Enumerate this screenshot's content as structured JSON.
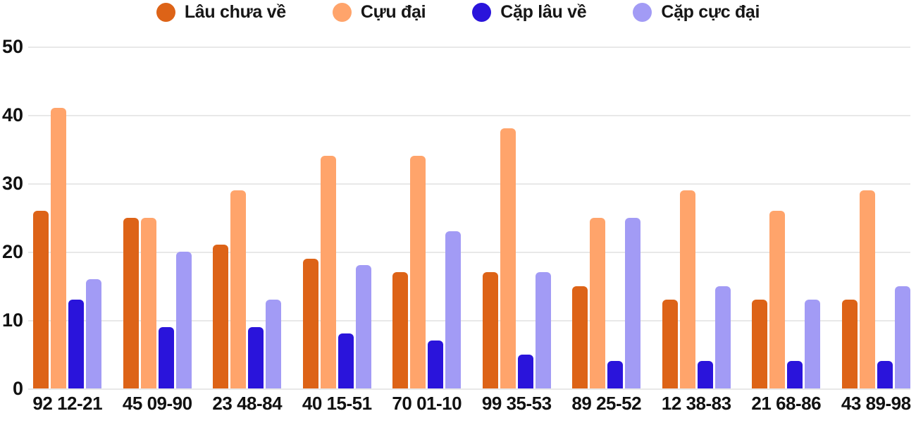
{
  "chart_data": {
    "type": "bar",
    "title": "",
    "xlabel": "",
    "ylabel": "",
    "categories": [
      "92 12-21",
      "45 09-90",
      "23 48-84",
      "40 15-51",
      "70 01-10",
      "99 35-53",
      "89 25-52",
      "12 38-83",
      "21 68-86",
      "43 89-98"
    ],
    "series": [
      {
        "name": "Lâu chưa về",
        "color": "#DD6317",
        "values": [
          26,
          25,
          21,
          19,
          17,
          17,
          15,
          13,
          13,
          13
        ]
      },
      {
        "name": "Cựu đại",
        "color": "#FFA46B",
        "values": [
          41,
          25,
          29,
          34,
          34,
          38,
          25,
          29,
          26,
          29
        ]
      },
      {
        "name": "Cặp lâu về",
        "color": "#2A14DB",
        "values": [
          13,
          9,
          9,
          8,
          7,
          5,
          4,
          4,
          4,
          4
        ]
      },
      {
        "name": "Cặp cực đại",
        "color": "#A29BF5",
        "values": [
          16,
          20,
          13,
          18,
          23,
          17,
          25,
          15,
          13,
          15
        ]
      }
    ],
    "ylim": [
      0,
      50
    ],
    "yticks": [
      0,
      10,
      20,
      30,
      40,
      50
    ],
    "grid": true,
    "legend_position": "top"
  },
  "colors": {
    "grid": "#E8E8E8",
    "axis_text": "#111111",
    "legend_text": "#161616",
    "background": "#FFFFFF"
  }
}
